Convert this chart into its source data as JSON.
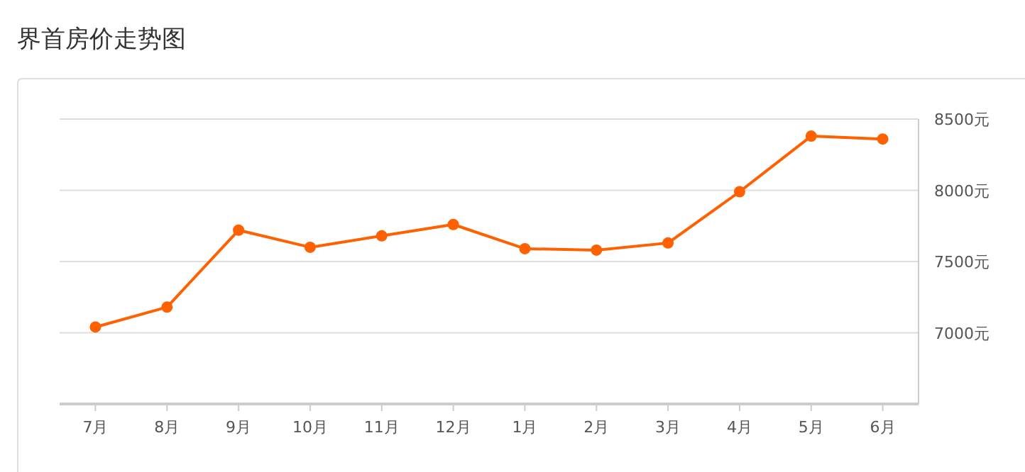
{
  "chart_data": {
    "type": "line",
    "title": "界首房价走势图",
    "categories": [
      "7月",
      "8月",
      "9月",
      "10月",
      "11月",
      "12月",
      "1月",
      "2月",
      "3月",
      "4月",
      "5月",
      "6月"
    ],
    "series": [
      {
        "color": "#ff6000",
        "values": [
          7040,
          7180,
          7720,
          7600,
          7680,
          7760,
          7590,
          7580,
          7630,
          7990,
          8380,
          8360
        ]
      }
    ],
    "ylim": [
      6500,
      8500
    ],
    "yticks": [
      {
        "value": 7000,
        "label": "7000元"
      },
      {
        "value": 7500,
        "label": "7500元"
      },
      {
        "value": 8000,
        "label": "8000元"
      },
      {
        "value": 8500,
        "label": "8500元"
      }
    ],
    "grid": "y",
    "marker": "circle",
    "line_style": "solid"
  }
}
